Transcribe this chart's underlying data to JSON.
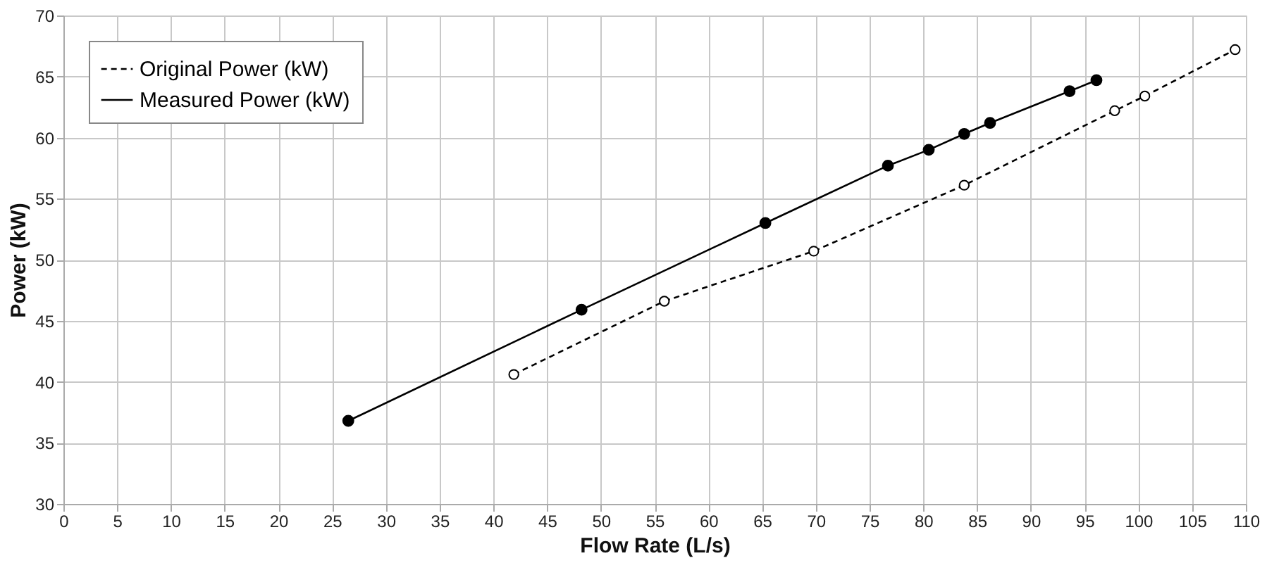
{
  "chart_data": {
    "type": "line",
    "xlabel": "Flow Rate (L/s)",
    "ylabel": "Power (kW)",
    "xlim": [
      0,
      110
    ],
    "xticks": [
      0,
      5,
      10,
      15,
      20,
      25,
      30,
      35,
      40,
      45,
      50,
      55,
      60,
      65,
      70,
      75,
      80,
      85,
      90,
      95,
      100,
      105,
      110
    ],
    "ylim": [
      30,
      70
    ],
    "yticks": [
      30,
      35,
      40,
      45,
      50,
      55,
      60,
      65,
      70
    ],
    "grid": true,
    "legend": "top left",
    "marker": "circle",
    "series": [
      {
        "name": "Original Power (kW)",
        "color": "#000000",
        "line_style": "dashed",
        "x": [
          41.9,
          55.9,
          69.8,
          83.8,
          97.8,
          100.6,
          109
        ],
        "values": [
          40.6,
          46.6,
          50.7,
          56.1,
          62.2,
          63.4,
          67.2
        ]
      },
      {
        "name": "Measured Power (kW)",
        "color": "#000000",
        "line_style": "solid",
        "x": [
          26.5,
          48.2,
          65.3,
          76.7,
          80.5,
          83.8,
          86.2,
          93.6,
          96.1
        ],
        "values": [
          36.8,
          45.9,
          53.0,
          57.7,
          59.0,
          60.3,
          61.2,
          63.8,
          64.7
        ]
      }
    ]
  }
}
